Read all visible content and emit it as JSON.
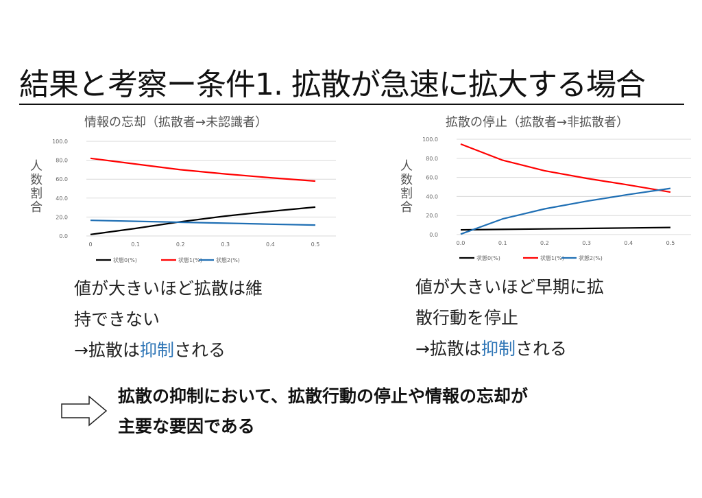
{
  "slide": {
    "title": "結果と考察ー条件1. 拡散が急速に拡大する場合",
    "conclusion_line1": "拡散の抑制において、拡散行動の停止や情報の忘却が",
    "conclusion_line2": "主要な要因である"
  },
  "left": {
    "title": "情報の忘却（拡散者→未認識者）",
    "ylabel": "人数割合",
    "note_line1": "値が大きいほど拡散は維",
    "note_line2": "持できない",
    "note_line3_pre": "→拡散は",
    "note_line3_hl": "抑制",
    "note_line3_post": "される"
  },
  "right": {
    "title": "拡散の停止（拡散者→非拡散者）",
    "ylabel": "人数割合",
    "note_line1": "値が大きいほど早期に拡",
    "note_line2": "散行動を停止",
    "note_line3_pre": "→拡散は",
    "note_line3_hl": "抑制",
    "note_line3_post": "される"
  },
  "chart_data": [
    {
      "type": "line",
      "title": "情報の忘却（拡散者→未認識者）",
      "ylabel": "人数割合",
      "xlabel": "",
      "x": [
        0.0,
        0.1,
        0.2,
        0.3,
        0.4,
        0.5
      ],
      "x_ticks": [
        "0",
        "0.1",
        "0.2",
        "0.3",
        "0.4",
        "0.5"
      ],
      "y_ticks": [
        "0.0",
        "20.0",
        "40.0",
        "60.0",
        "80.0",
        "100.0"
      ],
      "ylim": [
        0,
        100
      ],
      "grid": true,
      "legend": "bottom",
      "series": [
        {
          "name": "状態0(%)",
          "color": "#000000",
          "values": [
            1.5,
            8.0,
            15.0,
            21.0,
            26.0,
            30.5
          ]
        },
        {
          "name": "状態1(%)",
          "color": "#ff0000",
          "values": [
            82.0,
            76.0,
            70.0,
            65.5,
            61.5,
            58.0
          ]
        },
        {
          "name": "状態2(%)",
          "color": "#1f6fb4",
          "values": [
            16.5,
            15.5,
            14.5,
            13.5,
            12.5,
            11.5
          ]
        }
      ]
    },
    {
      "type": "line",
      "title": "拡散の停止（拡散者→非拡散者）",
      "ylabel": "人数割合",
      "xlabel": "",
      "x": [
        0.0,
        0.1,
        0.2,
        0.3,
        0.4,
        0.5
      ],
      "x_ticks": [
        "0.0",
        "0.1",
        "0.2",
        "0.3",
        "0.4",
        "0.5"
      ],
      "y_ticks": [
        "0.0",
        "20.0",
        "40.0",
        "60.0",
        "80.0",
        "100.0"
      ],
      "ylim": [
        0,
        100
      ],
      "grid": true,
      "legend": "bottom",
      "series": [
        {
          "name": "状態0(%)",
          "color": "#000000",
          "values": [
            5.0,
            5.5,
            6.0,
            6.5,
            7.0,
            7.5
          ]
        },
        {
          "name": "状態1(%)",
          "color": "#ff0000",
          "values": [
            95.0,
            78.0,
            67.0,
            59.0,
            52.0,
            44.5
          ]
        },
        {
          "name": "状態2(%)",
          "color": "#1f6fb4",
          "values": [
            0.5,
            16.5,
            27.0,
            35.0,
            42.0,
            48.5
          ]
        }
      ]
    }
  ]
}
